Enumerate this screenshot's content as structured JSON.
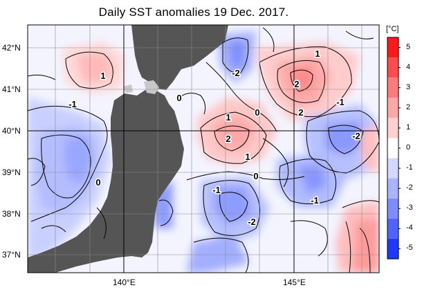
{
  "title": "Daily SST anomalies 19 Dec. 2017.",
  "lat_labels": [
    "42°N",
    "41°N",
    "40°N",
    "39°N",
    "38°N",
    "37°N"
  ],
  "lon_labels": [
    "140°E",
    "145°E"
  ],
  "colorbar": {
    "unit": "[°C]",
    "ticks": [
      "5",
      "4",
      "3",
      "2",
      "1",
      "0",
      "-1",
      "-2",
      "-3",
      "-4",
      "-5"
    ],
    "colors": [
      "#ff1a1a",
      "#ff4d4d",
      "#ff7a7a",
      "#ffa6a6",
      "#ffd0d0",
      "#ffffff",
      "#d2d8ff",
      "#a8b4ff",
      "#7d8cff",
      "#4f63ff",
      "#1f3aff"
    ]
  },
  "contour_labels": [
    {
      "text": "1"
    },
    {
      "text": "-2"
    },
    {
      "text": "1"
    },
    {
      "text": "2"
    },
    {
      "text": "-1"
    },
    {
      "text": "0"
    },
    {
      "text": "0"
    },
    {
      "text": "2"
    },
    {
      "text": "-1"
    },
    {
      "text": "1"
    },
    {
      "text": "2"
    },
    {
      "text": "-2"
    },
    {
      "text": "1"
    },
    {
      "text": "0"
    },
    {
      "text": "0"
    },
    {
      "text": "-1"
    },
    {
      "text": "-1"
    },
    {
      "text": "-2"
    }
  ],
  "colors": {
    "land": "#555555",
    "ice_patch": "#c8c8c8"
  }
}
